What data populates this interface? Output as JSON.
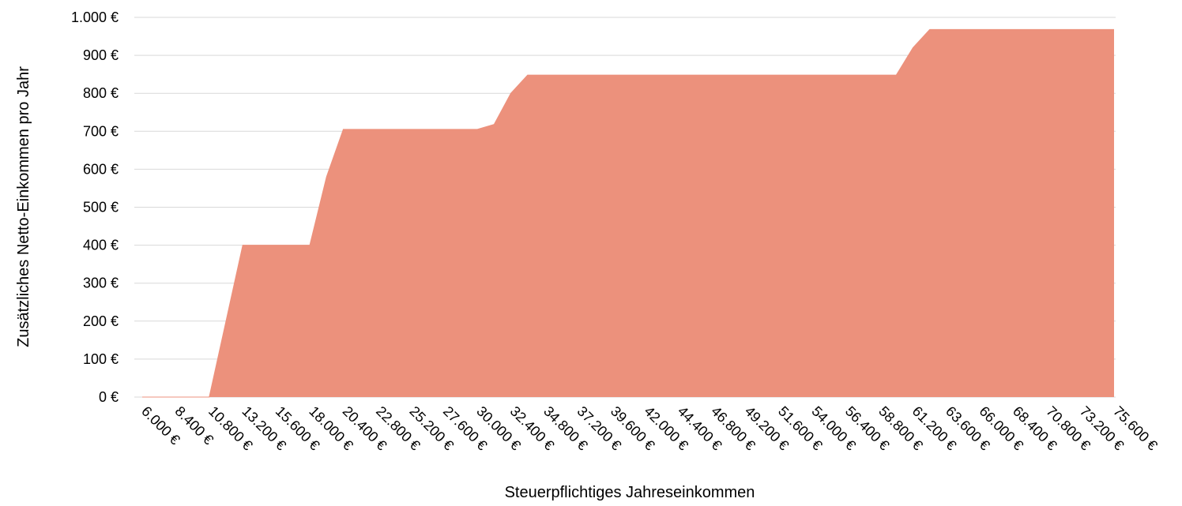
{
  "chart_data": {
    "type": "area",
    "x_label": "Steuerpflichtiges Jahreseinkommen",
    "y_label": "Zusätzliches Netto-Einkommen pro Jahr",
    "categories": [
      "6.000 €",
      null,
      "8.400 €",
      null,
      "10.800 €",
      null,
      "13.200 €",
      null,
      "15.600 €",
      null,
      "18.000 €",
      null,
      "20.400 €",
      null,
      "22.800 €",
      null,
      "25.200 €",
      null,
      "27.600 €",
      null,
      "30.000 €",
      null,
      "32.400 €",
      null,
      "34.800 €",
      null,
      "37.200 €",
      null,
      "39.600 €",
      null,
      "42.000 €",
      null,
      "44.400 €",
      null,
      "46.800 €",
      null,
      "49.200 €",
      null,
      "51.600 €",
      null,
      "54.000 €",
      null,
      "56.400 €",
      null,
      "58.800 €",
      null,
      "61.200 €",
      null,
      "63.600 €",
      null,
      "66.000 €",
      null,
      "68.400 €",
      null,
      "70.800 €",
      null,
      "73.200 €",
      null,
      "75.600 €"
    ],
    "values": [
      0,
      0,
      0,
      0,
      0,
      200,
      400,
      400,
      400,
      400,
      400,
      580,
      705,
      705,
      705,
      705,
      705,
      705,
      705,
      705,
      705,
      718,
      800,
      848,
      848,
      848,
      848,
      848,
      848,
      848,
      848,
      848,
      848,
      848,
      848,
      848,
      848,
      848,
      848,
      848,
      848,
      848,
      848,
      848,
      848,
      848,
      920,
      968,
      968,
      968,
      968,
      968,
      968,
      968,
      968,
      968,
      968,
      968,
      968
    ],
    "color": "#ec917c",
    "ylim": [
      0,
      1000
    ],
    "yticks": [
      {
        "value": 0,
        "label": "0 €"
      },
      {
        "value": 100,
        "label": "100 €"
      },
      {
        "value": 200,
        "label": "200 €"
      },
      {
        "value": 300,
        "label": "300 €"
      },
      {
        "value": 400,
        "label": "400 €"
      },
      {
        "value": 500,
        "label": "500 €"
      },
      {
        "value": 600,
        "label": "600 €"
      },
      {
        "value": 700,
        "label": "700 €"
      },
      {
        "value": 800,
        "label": "800 €"
      },
      {
        "value": 900,
        "label": "900 €"
      },
      {
        "value": 1000,
        "label": "1.000 €"
      }
    ],
    "grid": true
  }
}
